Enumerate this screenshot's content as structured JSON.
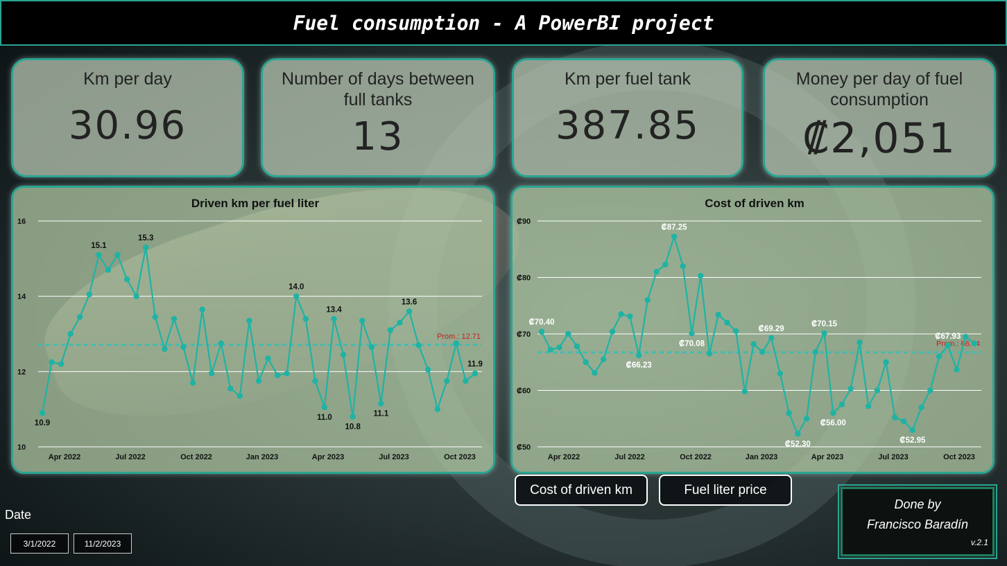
{
  "header": {
    "title": "Fuel consumption - A PowerBI project"
  },
  "kpis": [
    {
      "title": "Km per day",
      "value": "30.96"
    },
    {
      "title": "Number of days between full tanks",
      "value": "13"
    },
    {
      "title": "Km per fuel tank",
      "value": "387.85"
    },
    {
      "title": "Money per day of fuel consumption",
      "value": "₡2,051"
    }
  ],
  "colors": {
    "accent": "#2aa592",
    "line": "#1fb3a4",
    "avg": "#c81e1e"
  },
  "chart_data": [
    {
      "type": "line",
      "title": "Driven km per fuel liter",
      "x_tick_labels": [
        "Apr 2022",
        "Jul 2022",
        "Oct 2022",
        "Jan 2023",
        "Apr 2023",
        "Jul 2023",
        "Oct 2023"
      ],
      "y_ticks": [
        "10",
        "12",
        "14",
        "16"
      ],
      "ylim": [
        10,
        16
      ],
      "values": [
        10.9,
        12.25,
        12.2,
        13.0,
        13.45,
        14.05,
        15.1,
        14.7,
        15.1,
        14.45,
        14.0,
        15.3,
        13.45,
        12.6,
        13.4,
        12.65,
        11.7,
        13.65,
        11.95,
        12.75,
        11.55,
        11.35,
        13.35,
        11.75,
        12.35,
        11.9,
        11.95,
        14.0,
        13.4,
        11.75,
        11.05,
        13.4,
        12.45,
        10.8,
        13.35,
        12.65,
        11.15,
        13.1,
        13.3,
        13.6,
        12.7,
        12.05,
        11.0,
        11.75,
        12.75,
        11.75,
        11.95
      ],
      "data_labels": [
        {
          "index": 0,
          "text": "10.9"
        },
        {
          "index": 6,
          "text": "15.1"
        },
        {
          "index": 11,
          "text": "15.3"
        },
        {
          "index": 27,
          "text": "14.0"
        },
        {
          "index": 30,
          "text": "11.0"
        },
        {
          "index": 31,
          "text": "13.4"
        },
        {
          "index": 33,
          "text": "10.8"
        },
        {
          "index": 36,
          "text": "11.1"
        },
        {
          "index": 39,
          "text": "13.6"
        },
        {
          "index": 46,
          "text": "11.9"
        }
      ],
      "average": {
        "value": 12.71,
        "label": "Prom.: 12.71"
      },
      "grid": true
    },
    {
      "type": "line",
      "title": "Cost of driven km",
      "x_tick_labels": [
        "Apr 2022",
        "Jul 2022",
        "Oct 2022",
        "Jan 2023",
        "Apr 2023",
        "Jul 2023",
        "Oct 2023"
      ],
      "y_ticks": [
        "₡50",
        "₡60",
        "₡70",
        "₡80",
        "₡90"
      ],
      "ylim": [
        50,
        90
      ],
      "values": [
        70.4,
        67.2,
        67.6,
        70.0,
        67.8,
        65.0,
        63.1,
        65.5,
        70.4,
        73.5,
        73.1,
        66.23,
        76.0,
        81.0,
        82.3,
        87.25,
        82.0,
        70.08,
        80.3,
        66.5,
        73.4,
        72.0,
        70.5,
        59.8,
        68.2,
        66.8,
        69.29,
        63.0,
        56.0,
        52.3,
        55.0,
        66.8,
        70.15,
        56.0,
        57.5,
        60.3,
        68.5,
        57.2,
        60.0,
        65.0,
        55.2,
        54.5,
        52.95,
        57.0,
        60.0,
        66.0,
        67.93,
        63.7,
        69.5,
        68.3
      ],
      "data_labels": [
        {
          "index": 0,
          "text": "₡70.40"
        },
        {
          "index": 11,
          "text": "₡66.23"
        },
        {
          "index": 15,
          "text": "₡87.25"
        },
        {
          "index": 17,
          "text": "₡70.08"
        },
        {
          "index": 26,
          "text": "₡69.29"
        },
        {
          "index": 29,
          "text": "₡52.30"
        },
        {
          "index": 32,
          "text": "₡70.15"
        },
        {
          "index": 33,
          "text": "₡56.00"
        },
        {
          "index": 42,
          "text": "₡52.95"
        },
        {
          "index": 46,
          "text": "₡67.93"
        }
      ],
      "average": {
        "value": 66.74,
        "label": "Prom.: 66.74"
      },
      "grid": true
    }
  ],
  "buttons": {
    "cost_label": "Cost of driven km",
    "price_label": "Fuel liter price"
  },
  "date": {
    "label": "Date",
    "start": "3/1/2022",
    "end": "11/2/2023"
  },
  "credit": {
    "line1": "Done by",
    "line2": "Francisco Baradín",
    "version": "v.2.1"
  }
}
